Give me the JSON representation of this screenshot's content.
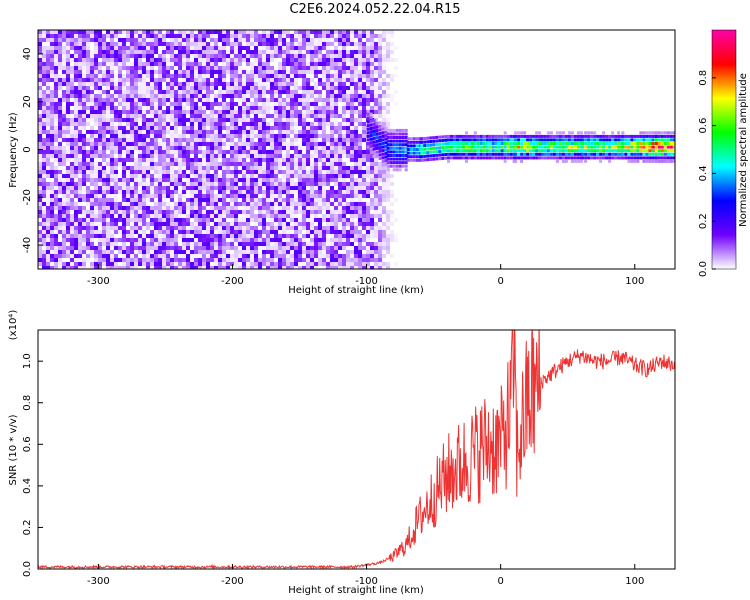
{
  "title": "C2E6.2024.052.22.04.R15",
  "colorbar": {
    "label": "Normalized spectral amplitude",
    "ticks": [
      "0.0",
      "0.2",
      "0.4",
      "0.6",
      "0.8"
    ],
    "range": [
      0,
      1
    ],
    "gradient": [
      "#ffffff",
      "#6f00ff",
      "#0000ff",
      "#00ffff",
      "#00ff00",
      "#ffff00",
      "#ff0000",
      "#ff00aa"
    ]
  },
  "chart_data": [
    {
      "type": "heatmap",
      "xlabel": "Height of straight line (km)",
      "ylabel": "Frequency (Hz)",
      "xlim": [
        -345,
        130
      ],
      "ylim": [
        -50,
        50
      ],
      "xticks": [
        -300,
        -200,
        -100,
        0,
        100
      ],
      "xtick_labels": [
        "-300",
        "-200",
        "-100",
        "0",
        "100"
      ],
      "yticks": [
        -40,
        -20,
        0,
        20,
        40
      ],
      "ytick_labels": [
        "-40",
        "-20",
        "0",
        "20",
        "40"
      ],
      "noise_region": {
        "x_from": -345,
        "x_to": -75,
        "y_from": -50,
        "y_to": 50,
        "amplitude": 0.1
      },
      "signal_band": [
        {
          "x": -100,
          "y": 8,
          "amp": 0.25
        },
        {
          "x": -85,
          "y": 0,
          "amp": 0.3
        },
        {
          "x": -70,
          "y": 0,
          "amp": 0.35
        },
        {
          "x": -60,
          "y": 0,
          "amp": 0.45
        },
        {
          "x": -40,
          "y": 1,
          "amp": 0.5
        },
        {
          "x": -20,
          "y": 1,
          "amp": 0.55
        },
        {
          "x": 0,
          "y": 1,
          "amp": 0.5
        },
        {
          "x": 10,
          "y": 1,
          "amp": 0.7
        },
        {
          "x": 30,
          "y": 1,
          "amp": 0.55
        },
        {
          "x": 60,
          "y": 1,
          "amp": 0.6
        },
        {
          "x": 90,
          "y": 1,
          "amp": 0.6
        },
        {
          "x": 115,
          "y": 1,
          "amp": 0.85
        },
        {
          "x": 130,
          "y": 1,
          "amp": 0.8
        }
      ]
    },
    {
      "type": "line",
      "xlabel": "Height of straight line (km)",
      "ylabel": "SNR (10 * v/v)",
      "scale_label": "(x10⁴)",
      "xlim": [
        -345,
        130
      ],
      "ylim": [
        0,
        1.15
      ],
      "xticks": [
        -300,
        -200,
        -100,
        0,
        100
      ],
      "xtick_labels": [
        "-300",
        "-200",
        "-100",
        "0",
        "100"
      ],
      "yticks": [
        0,
        0.2,
        0.4,
        0.6,
        0.8,
        1.0
      ],
      "ytick_labels": [
        "0.0",
        "0.2",
        "0.4",
        "0.6",
        "0.8",
        "1.0"
      ],
      "series": [
        {
          "color": "#ee3333",
          "x": [
            -345,
            -300,
            -250,
            -200,
            -150,
            -110,
            -100,
            -90,
            -80,
            -70,
            -60,
            -50,
            -40,
            -30,
            -20,
            -10,
            0,
            5,
            8,
            10,
            12,
            15,
            20,
            30,
            40,
            50,
            60,
            70,
            80,
            90,
            100,
            110,
            120,
            130
          ],
          "y": [
            0.01,
            0.01,
            0.01,
            0.01,
            0.01,
            0.01,
            0.02,
            0.03,
            0.06,
            0.12,
            0.25,
            0.35,
            0.45,
            0.5,
            0.55,
            0.6,
            0.6,
            0.7,
            0.78,
            1.1,
            0.55,
            0.65,
            0.8,
            0.9,
            0.95,
            1.0,
            1.03,
            1.0,
            1.0,
            1.02,
            0.98,
            0.96,
            1.0,
            0.98
          ]
        }
      ]
    }
  ]
}
